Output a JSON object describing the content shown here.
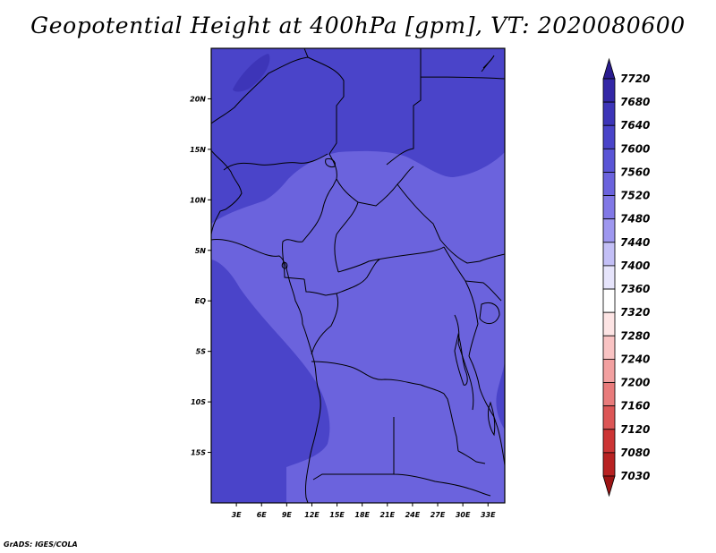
{
  "title": "Geopotential Height at 400hPa [gpm], VT: 2020080600",
  "credit": "GrADS: IGES/COLA",
  "map": {
    "lon_range": [
      0,
      35
    ],
    "lat_range": [
      -20,
      25
    ],
    "lat_ticks": [
      {
        "value": 20,
        "label": "20N"
      },
      {
        "value": 15,
        "label": "15N"
      },
      {
        "value": 10,
        "label": "10N"
      },
      {
        "value": 5,
        "label": "5N"
      },
      {
        "value": 0,
        "label": "EQ"
      },
      {
        "value": -5,
        "label": "5S"
      },
      {
        "value": -10,
        "label": "10S"
      },
      {
        "value": -15,
        "label": "15S"
      }
    ],
    "lon_ticks": [
      {
        "value": 3,
        "label": "3E"
      },
      {
        "value": 6,
        "label": "6E"
      },
      {
        "value": 9,
        "label": "9E"
      },
      {
        "value": 12,
        "label": "12E"
      },
      {
        "value": 15,
        "label": "15E"
      },
      {
        "value": 18,
        "label": "18E"
      },
      {
        "value": 21,
        "label": "21E"
      },
      {
        "value": 24,
        "label": "24E"
      },
      {
        "value": 27,
        "label": "27E"
      },
      {
        "value": 30,
        "label": "30E"
      },
      {
        "value": 33,
        "label": "33E"
      }
    ]
  },
  "colorbar": {
    "labels": [
      "7720",
      "7680",
      "7640",
      "7600",
      "7560",
      "7520",
      "7480",
      "7440",
      "7400",
      "7360",
      "7320",
      "7280",
      "7240",
      "7200",
      "7160",
      "7120",
      "7080",
      "7030"
    ],
    "colors": [
      "#2a1c8f",
      "#3327a6",
      "#3d35b8",
      "#4a44c9",
      "#5a55d6",
      "#6b63dd",
      "#8178e6",
      "#9e97ef",
      "#c3bff6",
      "#e6e4fb",
      "#ffffff",
      "#fde4e4",
      "#f9c3c3",
      "#f2a0a0",
      "#e87b7b",
      "#dc5656",
      "#cc3535",
      "#b82222",
      "#9c1414"
    ]
  },
  "field_colors": {
    "c7600": "#4a44c9",
    "c7560": "#5a55d6",
    "c7640": "#3d35b8"
  }
}
